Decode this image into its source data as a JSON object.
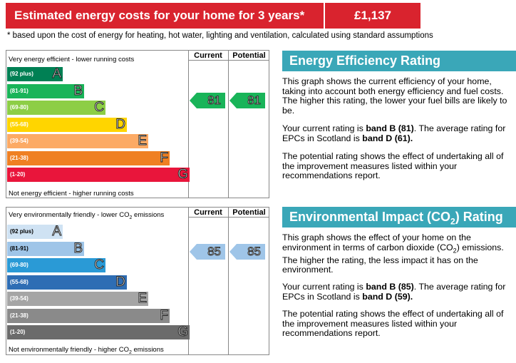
{
  "costs": {
    "label": "Estimated energy costs for your home for 3 years*",
    "value": "£1,137",
    "note": "* based upon the cost of energy for heating, hot water, lighting and ventilation, calculated using standard assumptions"
  },
  "colors": {
    "cost_red": "#d9232e",
    "title_teal": "#3aa7b8"
  },
  "efficiency_chart": {
    "top_label": "Very energy efficient - lower running costs",
    "bottom_label": "Not energy efficient - higher running costs",
    "current_header": "Current",
    "potential_header": "Potential",
    "current_value": "81",
    "potential_value": "81",
    "bands": [
      {
        "range": "(92 plus)",
        "letter": "A",
        "color": "#008054"
      },
      {
        "range": "(81-91)",
        "letter": "B",
        "color": "#19b459"
      },
      {
        "range": "(69-80)",
        "letter": "C",
        "color": "#8dce46"
      },
      {
        "range": "(55-68)",
        "letter": "D",
        "color": "#ffd500"
      },
      {
        "range": "(39-54)",
        "letter": "E",
        "color": "#fcaa65"
      },
      {
        "range": "(21-38)",
        "letter": "F",
        "color": "#ef8023"
      },
      {
        "range": "(1-20)",
        "letter": "G",
        "color": "#e9153b"
      }
    ]
  },
  "environment_chart": {
    "top_label_pre": "Very environmentally friendly - lower CO",
    "top_label_sub": "2",
    "top_label_post": " emissions",
    "bottom_label_pre": "Not environmentally friendly - higher CO",
    "bottom_label_sub": "2",
    "bottom_label_post": " emissions",
    "current_header": "Current",
    "potential_header": "Potential",
    "current_value": "85",
    "potential_value": "85",
    "bands": [
      {
        "range": "(92 plus)",
        "letter": "A",
        "color": "#cfe2f3"
      },
      {
        "range": "(81-91)",
        "letter": "B",
        "color": "#9fc5e8"
      },
      {
        "range": "(69-80)",
        "letter": "C",
        "color": "#2a9ad6"
      },
      {
        "range": "(55-68)",
        "letter": "D",
        "color": "#2e6db4"
      },
      {
        "range": "(39-54)",
        "letter": "E",
        "color": "#a5a5a5"
      },
      {
        "range": "(21-38)",
        "letter": "F",
        "color": "#8a8a8a"
      },
      {
        "range": "(1-20)",
        "letter": "G",
        "color": "#6b6b6b"
      }
    ]
  },
  "efficiency_text": {
    "title": "Energy Efficiency Rating",
    "p1": "This graph shows the current efficiency of your home, taking into account both energy efficiency and fuel costs. The higher this rating, the lower your fuel bills are likely to be.",
    "p2_pre": "Your current rating is ",
    "p2_band": "band B (81)",
    "p2_mid": ". The average rating for EPCs in Scotland is ",
    "p2_avg": "band D (61).",
    "p3": "The potential rating shows the effect of undertaking all of the improvement measures listed within your recommendations report."
  },
  "environment_text": {
    "title_pre": "Environmental Impact (CO",
    "title_sub": "2",
    "title_post": ") Rating",
    "p1_pre": "This graph shows the effect of your home on the environment in terms of carbon dioxide (CO",
    "p1_sub": "2",
    "p1_post": ") emissions. The higher the rating, the less impact it has on the environment.",
    "p2_pre": "Your current rating is ",
    "p2_band": "band B (85)",
    "p2_mid": ". The average rating for EPCs in Scotland is ",
    "p2_avg": "band D (59).",
    "p3": "The potential rating shows the effect of undertaking all of the improvement measures listed within your recommendations report."
  }
}
